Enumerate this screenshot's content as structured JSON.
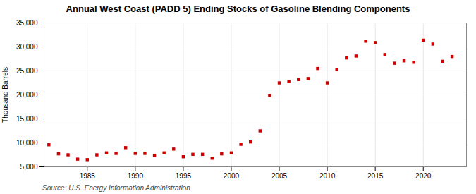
{
  "chart_data": {
    "type": "scatter",
    "title": "Annual West Coast (PADD 5) Ending Stocks of Gasoline Blending Components",
    "ylabel": "Thousand Barrels",
    "source": "Source: U.S. Energy Information Administration",
    "color": "#cc0000",
    "marker": "square",
    "grid": true,
    "x": [
      1981,
      1982,
      1983,
      1984,
      1985,
      1986,
      1987,
      1988,
      1989,
      1990,
      1991,
      1992,
      1993,
      1994,
      1995,
      1996,
      1997,
      1998,
      1999,
      2000,
      2001,
      2002,
      2003,
      2004,
      2005,
      2006,
      2007,
      2008,
      2009,
      2010,
      2011,
      2012,
      2013,
      2014,
      2015,
      2016,
      2017,
      2018,
      2019,
      2020,
      2021,
      2022,
      2023
    ],
    "values": [
      9600,
      7700,
      7500,
      6600,
      6500,
      7500,
      7900,
      7800,
      9000,
      7800,
      7800,
      7400,
      7900,
      8700,
      7100,
      7600,
      7600,
      6800,
      7700,
      7900,
      9700,
      10200,
      12500,
      19900,
      22500,
      22800,
      23200,
      23400,
      25500,
      22500,
      25300,
      27700,
      28100,
      31200,
      30900,
      28400,
      26600,
      27100,
      26800,
      31400,
      30600,
      27000,
      28000
    ],
    "xlim": [
      1980.5,
      2024.5
    ],
    "xticks": [
      1985,
      1990,
      1995,
      2000,
      2005,
      2010,
      2015,
      2020
    ],
    "ylim": [
      5000,
      35000
    ],
    "yticks": [
      {
        "value": 5000,
        "label": "5,000"
      },
      {
        "value": 10000,
        "label": "10,000"
      },
      {
        "value": 15000,
        "label": "15,000"
      },
      {
        "value": 20000,
        "label": "20,000"
      },
      {
        "value": 25000,
        "label": "25,000"
      },
      {
        "value": 30000,
        "label": "30,000"
      },
      {
        "value": 35000,
        "label": "35,000"
      }
    ]
  }
}
